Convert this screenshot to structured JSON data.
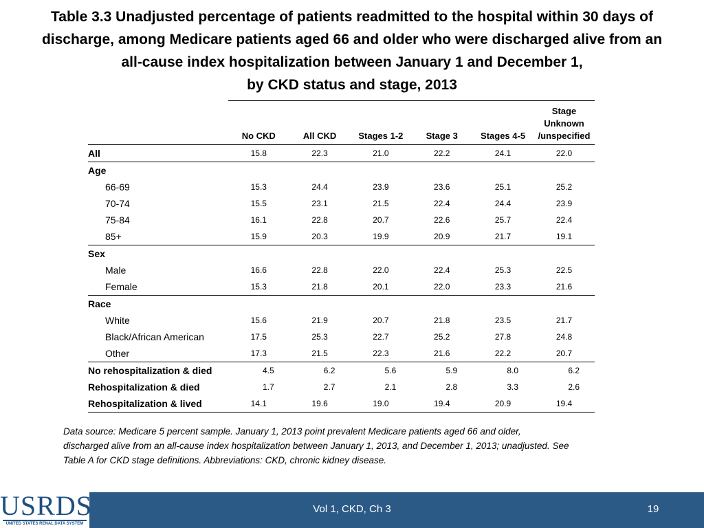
{
  "title": {
    "line1": "Table 3.3  Unadjusted percentage of patients readmitted to the hospital within 30 days of",
    "line2": "discharge, among Medicare patients aged 66 and older who were discharged alive from an",
    "line3": "all-cause index hospitalization between January 1 and December 1,",
    "line4": "by CKD status and stage, 2013"
  },
  "table": {
    "headers": {
      "no_ckd": "No CKD",
      "all_ckd": "All CKD",
      "stages12": "Stages 1-2",
      "stage3": "Stage 3",
      "stages45": "Stages 4-5",
      "unknown_l1": "Stage",
      "unknown_l2": "Unknown",
      "unknown_l3": "/unspecified"
    },
    "rows": {
      "all": {
        "label": "All",
        "values": [
          "15.8",
          "22.3",
          "21.0",
          "22.2",
          "24.1",
          "22.0"
        ]
      },
      "age": {
        "label": "Age"
      },
      "age_66_69": {
        "label": "66-69",
        "values": [
          "15.3",
          "24.4",
          "23.9",
          "23.6",
          "25.1",
          "25.2"
        ]
      },
      "age_70_74": {
        "label": "70-74",
        "values": [
          "15.5",
          "23.1",
          "21.5",
          "22.4",
          "24.4",
          "23.9"
        ]
      },
      "age_75_84": {
        "label": "75-84",
        "values": [
          "16.1",
          "22.8",
          "20.7",
          "22.6",
          "25.7",
          "22.4"
        ]
      },
      "age_85": {
        "label": "85+",
        "values": [
          "15.9",
          "20.3",
          "19.9",
          "20.9",
          "21.7",
          "19.1"
        ]
      },
      "sex": {
        "label": "Sex"
      },
      "male": {
        "label": "Male",
        "values": [
          "16.6",
          "22.8",
          "22.0",
          "22.4",
          "25.3",
          "22.5"
        ]
      },
      "female": {
        "label": "Female",
        "values": [
          "15.3",
          "21.8",
          "20.1",
          "22.0",
          "23.3",
          "21.6"
        ]
      },
      "race": {
        "label": "Race"
      },
      "white": {
        "label": "White",
        "values": [
          "15.6",
          "21.9",
          "20.7",
          "21.8",
          "23.5",
          "21.7"
        ]
      },
      "black": {
        "label": "Black/African American",
        "values": [
          "17.5",
          "25.3",
          "22.7",
          "25.2",
          "27.8",
          "24.8"
        ]
      },
      "other": {
        "label": "Other",
        "values": [
          "17.3",
          "21.5",
          "22.3",
          "21.6",
          "22.2",
          "20.7"
        ]
      },
      "norehosp_died": {
        "label": "No rehospitalization & died",
        "values": [
          "4.5",
          "6.2",
          "5.6",
          "5.9",
          "8.0",
          "6.2"
        ]
      },
      "rehosp_died": {
        "label": "Rehospitalization & died",
        "values": [
          "1.7",
          "2.7",
          "2.1",
          "2.8",
          "3.3",
          "2.6"
        ]
      },
      "rehosp_lived": {
        "label": "Rehospitalization & lived",
        "values": [
          "14.1",
          "19.6",
          "19.0",
          "19.4",
          "20.9",
          "19.4"
        ]
      }
    }
  },
  "note": {
    "line1": "Data source: Medicare 5 percent sample. January 1, 2013 point prevalent Medicare patients aged 66 and older,",
    "line2": "discharged alive from an all-cause index hospitalization between January 1, 2013, and December 1, 2013; unadjusted. See",
    "line3": "Table A for CKD stage definitions. Abbreviations: CKD, chronic kidney disease."
  },
  "footer": {
    "logo_main": "USRDS",
    "logo_sub": "UNITED STATES RENAL DATA SYSTEM",
    "center": "Vol 1, CKD, Ch 3",
    "page": "19",
    "color": "#2c5a86"
  }
}
